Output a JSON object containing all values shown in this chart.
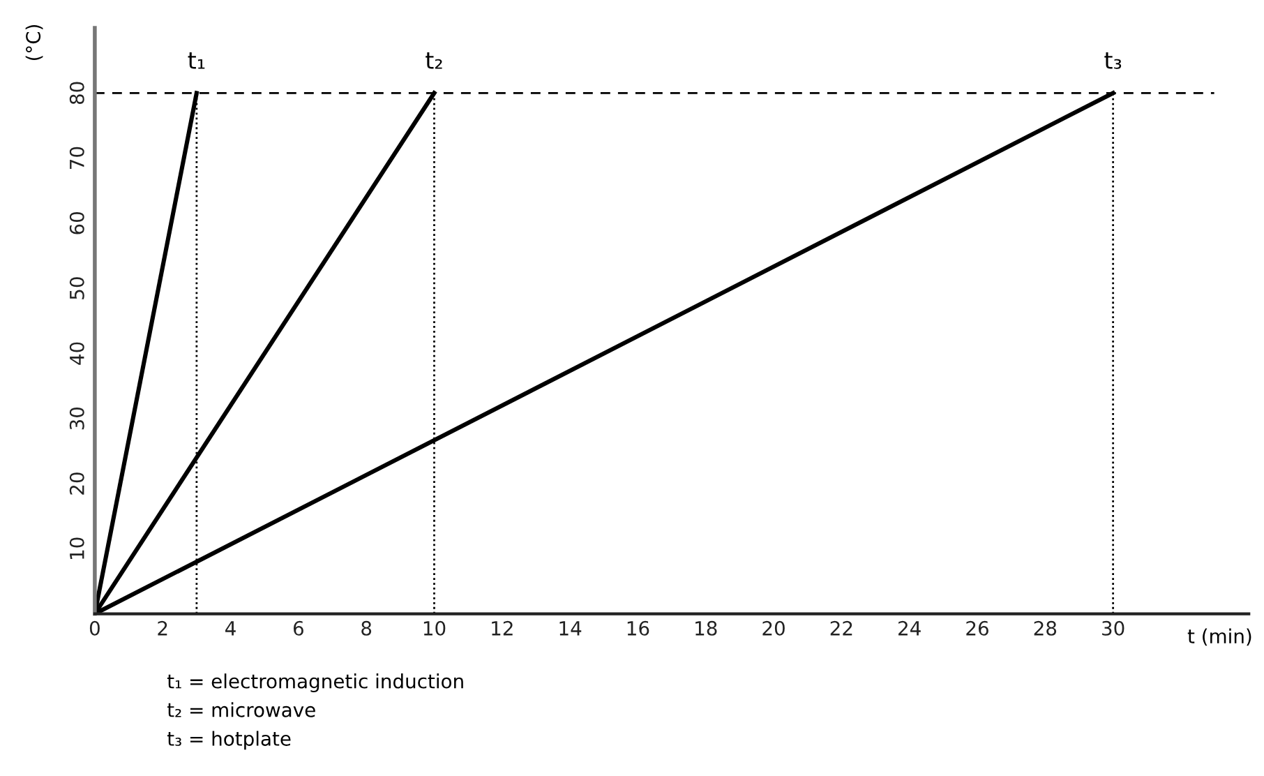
{
  "chart_data": {
    "type": "line",
    "ylabel": "(°C)",
    "xlabel": "t (min)",
    "series": [
      {
        "color": "#000000",
        "x": [
          0,
          3
        ],
        "values": [
          0,
          80
        ]
      },
      {
        "color": "#000000",
        "x": [
          0,
          10
        ],
        "values": [
          0,
          80
        ]
      },
      {
        "color": "#000000",
        "x": [
          0,
          30
        ],
        "values": [
          0,
          80
        ]
      }
    ],
    "xlim": [
      0,
      34
    ],
    "ylim": [
      0,
      90
    ],
    "xticks": [
      0,
      2,
      4,
      6,
      8,
      10,
      12,
      14,
      16,
      18,
      20,
      22,
      24,
      26,
      28,
      30
    ],
    "yticks": [
      10,
      20,
      30,
      40,
      50,
      60,
      70,
      80
    ],
    "ref_lines": [
      {
        "axis": "y",
        "value": 80,
        "label": null,
        "color": "#000000",
        "line_style": "dashed"
      },
      {
        "axis": "x",
        "value": 3,
        "label": "t₁",
        "color": "#000000",
        "line_style": "dotted"
      },
      {
        "axis": "x",
        "value": 10,
        "label": "t₂",
        "color": "#000000",
        "line_style": "dotted"
      },
      {
        "axis": "x",
        "value": 30,
        "label": "t₃",
        "color": "#000000",
        "line_style": "dotted"
      }
    ],
    "annotations": [
      "t₁ = electromagnetic induction",
      "t₂ = microwave",
      "t₃ = hotplate"
    ],
    "grid": false,
    "marker": "none",
    "line_style": "solid"
  }
}
